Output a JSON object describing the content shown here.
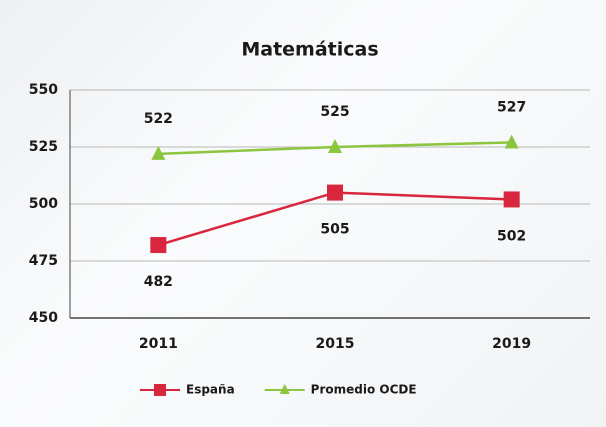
{
  "chart_data": {
    "type": "line",
    "title": "Matemáticas",
    "categories": [
      "2011",
      "2015",
      "2019"
    ],
    "series": [
      {
        "name": "España",
        "color": "#d7263d",
        "marker": "square",
        "values": [
          482,
          505,
          502
        ]
      },
      {
        "name": "Promedio OCDE",
        "color": "#8cc63f",
        "marker": "triangle",
        "values": [
          522,
          525,
          527
        ]
      }
    ],
    "ylim": [
      450,
      550
    ],
    "yticks": [
      450,
      475,
      500,
      525,
      550
    ],
    "grid": true,
    "legend": "bottom"
  }
}
